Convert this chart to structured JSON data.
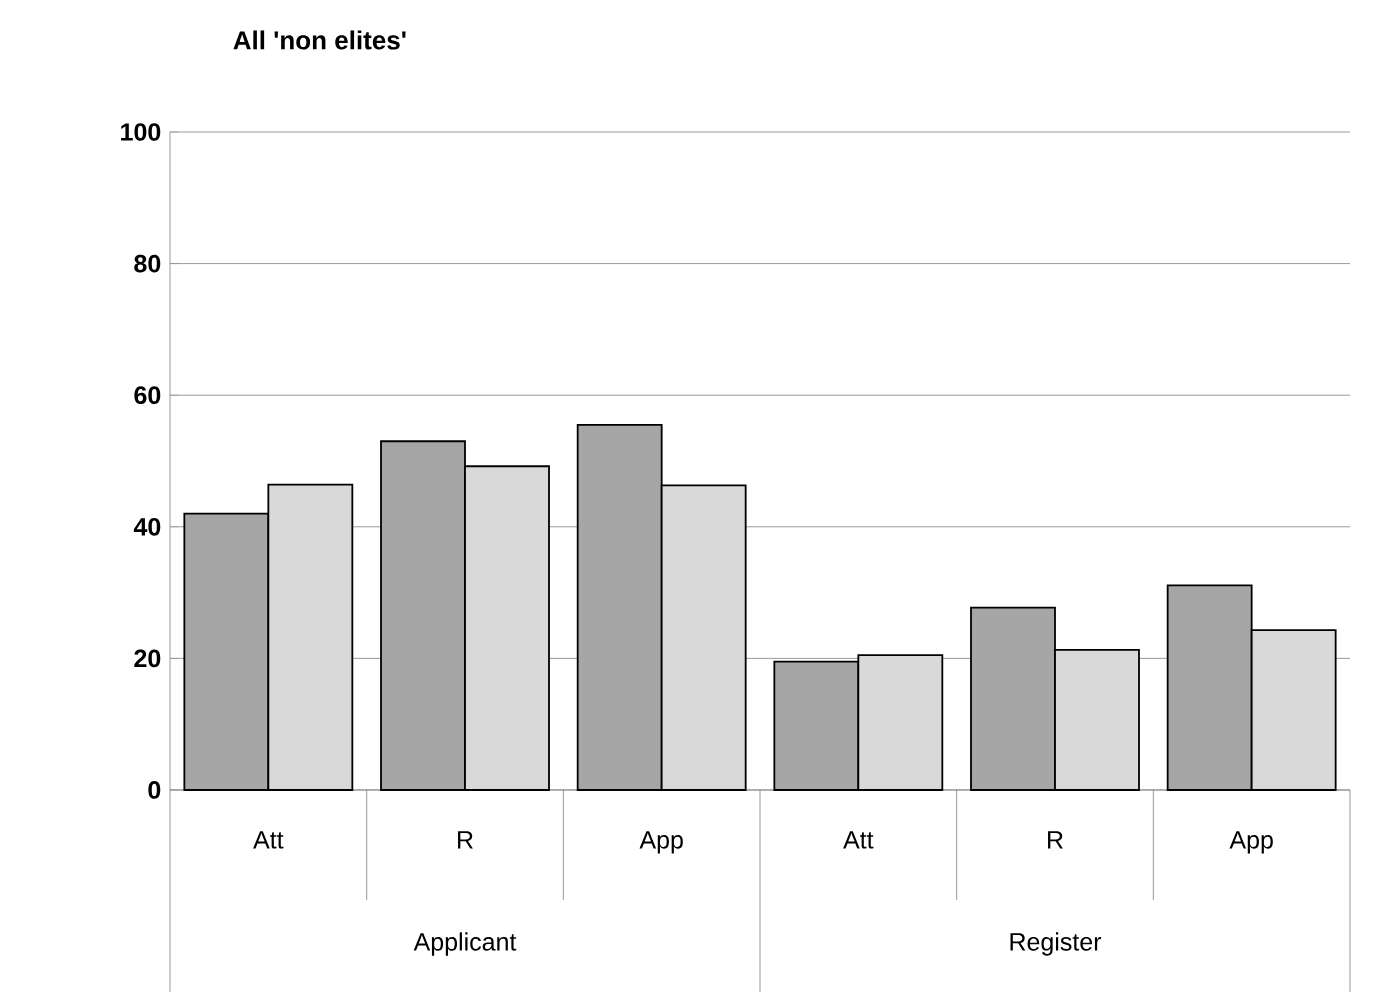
{
  "chart_data": {
    "type": "bar",
    "title": "All 'non elites'",
    "categories": [
      "Att",
      "R",
      "App",
      "Att",
      "R",
      "App"
    ],
    "annotations": [
      "Applicant",
      "Register"
    ],
    "series": [
      {
        "color": "#a6a6a6",
        "values": [
          42,
          53,
          55.5,
          19.5,
          27.7,
          31.1
        ]
      },
      {
        "color": "#d9d9d9",
        "values": [
          46.4,
          49.2,
          46.3,
          20.5,
          21.3,
          24.3
        ]
      }
    ],
    "ylim": [
      0,
      100
    ],
    "yticks": [
      0,
      20,
      40,
      60,
      80,
      100
    ],
    "grid": "y"
  }
}
